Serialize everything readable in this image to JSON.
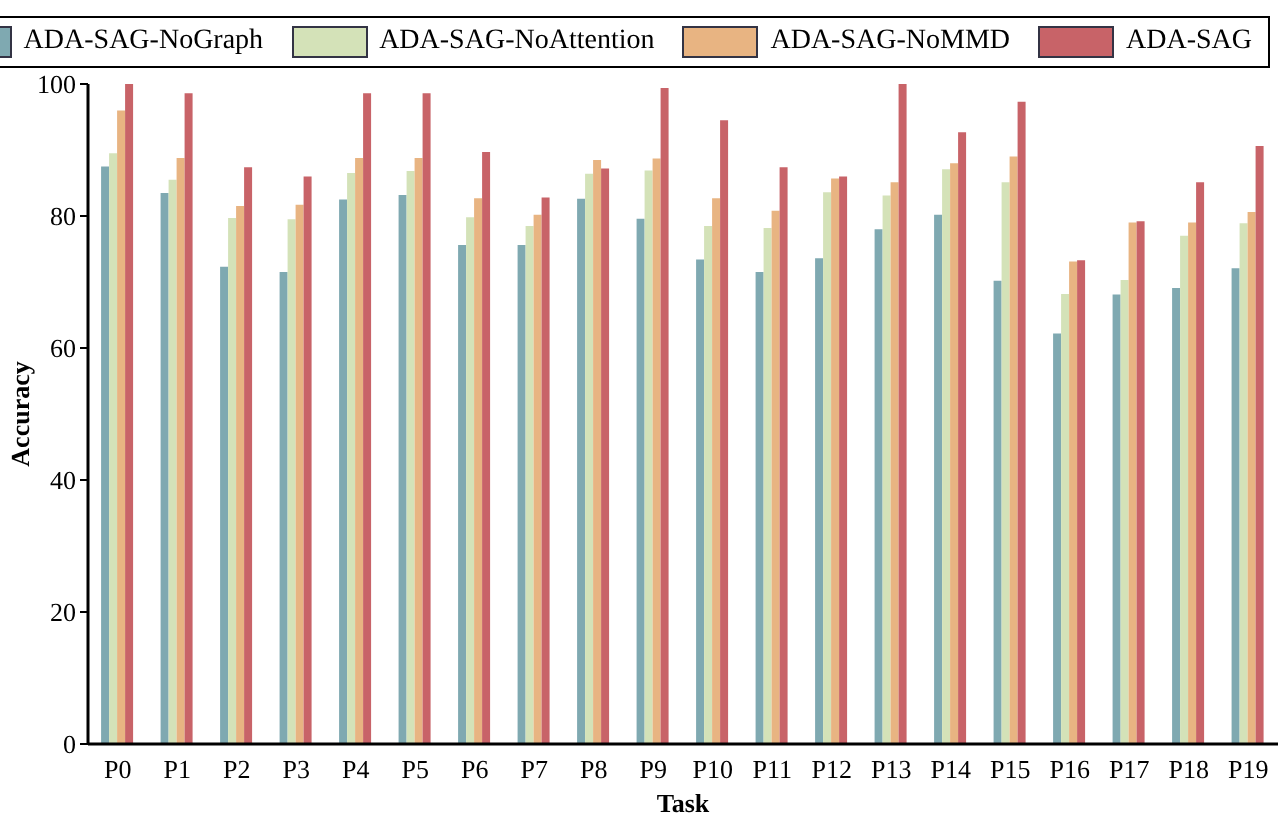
{
  "chart_data": {
    "type": "bar",
    "xlabel": "Task",
    "ylabel": "Accuracy",
    "categories": [
      "P0",
      "P1",
      "P2",
      "P3",
      "P4",
      "P5",
      "P6",
      "P7",
      "P8",
      "P9",
      "P10",
      "P11",
      "P12",
      "P13",
      "P14",
      "P15",
      "P16",
      "P17",
      "P18",
      "P19"
    ],
    "series": [
      {
        "name": "ADA-SAG-NoGraph",
        "color": "#7fa9b1",
        "values": [
          87.5,
          83.5,
          72.3,
          71.5,
          82.5,
          83.2,
          75.6,
          75.6,
          82.6,
          79.6,
          73.4,
          71.5,
          73.6,
          78,
          80.2,
          70.2,
          62.2,
          68.1,
          69.1,
          72.1
        ]
      },
      {
        "name": "ADA-SAG-NoAttention",
        "color": "#d4e2b8",
        "values": [
          89.5,
          85.5,
          79.7,
          79.5,
          86.5,
          86.8,
          79.8,
          78.5,
          86.4,
          86.9,
          78.5,
          78.2,
          83.6,
          83.1,
          87.1,
          85.1,
          68.2,
          70.3,
          77,
          78.9
        ]
      },
      {
        "name": "ADA-SAG-NoMMD",
        "color": "#e8b482",
        "values": [
          96,
          88.8,
          81.5,
          81.7,
          88.8,
          88.8,
          82.7,
          80.2,
          88.5,
          88.7,
          82.7,
          80.8,
          85.7,
          85.1,
          88,
          89,
          73.1,
          79,
          79,
          80.6
        ]
      },
      {
        "name": "ADA-SAG",
        "color": "#c86368",
        "values": [
          100,
          98.6,
          87.4,
          86,
          98.6,
          98.6,
          89.7,
          82.8,
          87.2,
          99.4,
          94.5,
          87.4,
          86,
          100,
          92.7,
          97.3,
          73.3,
          79.2,
          85.1,
          90.6
        ]
      }
    ],
    "ylim": [
      0,
      100
    ],
    "yticks": [
      0,
      20,
      40,
      60,
      80,
      100
    ],
    "grid": false,
    "legend": "top"
  }
}
